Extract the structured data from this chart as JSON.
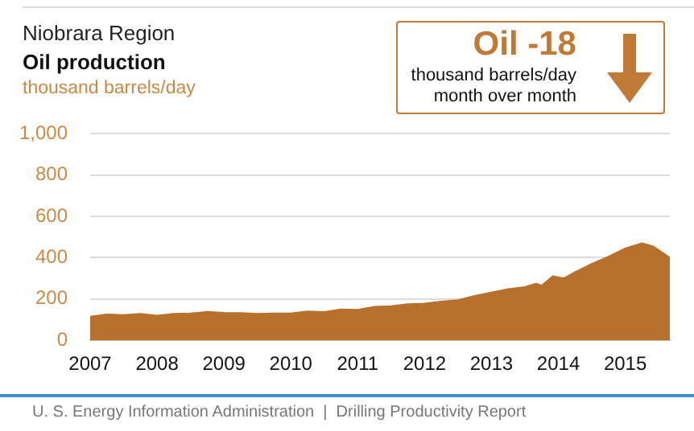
{
  "chart_data": {
    "type": "area",
    "subtitle": "Niobrara Region",
    "title": "Oil production",
    "ylabel": "thousand barrels/day",
    "annotations": [
      "Oil -18",
      "thousand barrels/day",
      "month over month",
      "U. S. Energy Information Administration  |  Drilling Productivity Report"
    ],
    "x": [
      "2007-01",
      "2007-04",
      "2007-07",
      "2007-10",
      "2008-01",
      "2008-04",
      "2008-07",
      "2008-10",
      "2009-01",
      "2009-04",
      "2009-07",
      "2009-10",
      "2010-01",
      "2010-04",
      "2010-07",
      "2010-10",
      "2011-01",
      "2011-04",
      "2011-07",
      "2011-10",
      "2012-01",
      "2012-04",
      "2012-07",
      "2012-10",
      "2013-01",
      "2013-04",
      "2013-07",
      "2013-09",
      "2013-10",
      "2013-12",
      "2014-02",
      "2014-04",
      "2014-07",
      "2014-10",
      "2015-01",
      "2015-04",
      "2015-06",
      "2015-09"
    ],
    "series": [
      {
        "color": "#b8712d",
        "values": [
          115,
          125,
          122,
          128,
          120,
          128,
          130,
          138,
          133,
          132,
          128,
          130,
          130,
          140,
          137,
          150,
          148,
          162,
          165,
          175,
          178,
          188,
          195,
          215,
          232,
          248,
          258,
          275,
          265,
          310,
          300,
          330,
          370,
          405,
          445,
          470,
          455,
          400
        ]
      }
    ],
    "xlim": [
      "2007-01",
      "2015-09"
    ],
    "xticks": [
      "2007",
      "2008",
      "2009",
      "2010",
      "2011",
      "2012",
      "2013",
      "2014",
      "2015"
    ],
    "ylim": [
      0,
      1000
    ],
    "yticks": [
      0,
      200,
      400,
      600,
      800,
      {
        "value": 1000,
        "label": "1,000"
      }
    ],
    "grid": "y",
    "legend": false
  }
}
